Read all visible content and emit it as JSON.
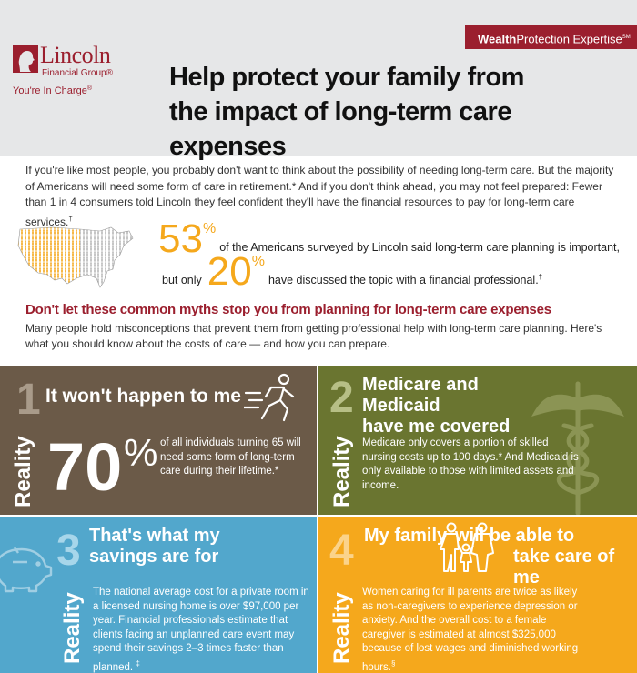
{
  "header": {
    "tab_bold": "Wealth",
    "tab_rest": "Protection Expertise",
    "tab_sup": "SM",
    "logo_name": "Lincoln",
    "logo_sub": "Financial Group",
    "logo_sub_mark": "®",
    "logo_tagline": "You're In Charge",
    "logo_tagline_mark": "®",
    "title_line1": "Help protect your family from",
    "title_line2": "the impact of long-term care expenses"
  },
  "intro": {
    "paragraph": "If you're like most people, you probably don't want to think about the possibility of needing long-term care. But the majority of Americans will need some form of care in retirement.* And if you don't think ahead, you may not feel prepared: Fewer than 1 in 4 consumers told Lincoln they feel confident they'll have the financial resources to pay for long-term care services.",
    "paragraph_mark": "†"
  },
  "stats": {
    "stat1_value": "53",
    "stat1_pct": "%",
    "stat1_text": "of the Americans surveyed by Lincoln said long-term care planning is important,",
    "stat2_prefix": "but only",
    "stat2_value": "20",
    "stat2_pct": "%",
    "stat2_text": "have discussed the topic with a financial professional.",
    "stat2_mark": "†"
  },
  "myths_section": {
    "heading": "Don't let these common myths stop you from planning for long-term care expenses",
    "paragraph": "Many people hold misconceptions that prevent them from getting professional help with long-term care planning. Here's what you should know about the costs of care — and how you can prepare."
  },
  "panels": [
    {
      "number": "1",
      "myth": "It won't happen to me",
      "reality_label": "Reality",
      "big_value": "70",
      "big_pct": "%",
      "body": "of all individuals turning 65 will need some form of long-term care during their lifetime.*",
      "color": "#6b5a48",
      "icon": "runner-icon"
    },
    {
      "number": "2",
      "myth_line1": "Medicare and Medicaid",
      "myth_line2": "have me covered",
      "reality_label": "Reality",
      "body": "Medicare only covers a portion of skilled nursing costs up to 100 days.* And Medicaid is only available to those with limited assets and income.",
      "color": "#6a7530",
      "icon": "caduceus-icon"
    },
    {
      "number": "3",
      "myth_line1": "That's what my",
      "myth_line2": "savings are for",
      "reality_label": "Reality",
      "body": "The national average cost for a private room in a licensed nursing home is over $97,000 per year. Financial professionals estimate that clients facing an unplanned care event may spend their savings 2–3 times faster than planned.",
      "body_mark": "‡",
      "color": "#52a7cc",
      "icon": "piggy-bank-icon"
    },
    {
      "number": "4",
      "myth_part1": "My family",
      "myth_part2": "will be able to",
      "myth_part3": "take care of me",
      "reality_label": "Reality",
      "body": "Women caring for ill parents are twice as likely as non-caregivers to experience depression or anxiety. And the overall cost to a female caregiver is estimated at almost $325,000 because of lost wages and diminished working hours.",
      "body_mark": "§",
      "color": "#f5a81c",
      "icon": "family-icon"
    }
  ],
  "colors": {
    "brand_red": "#9b1f2e",
    "accent_orange": "#f5a81c",
    "header_gray": "#e6e7e8"
  }
}
